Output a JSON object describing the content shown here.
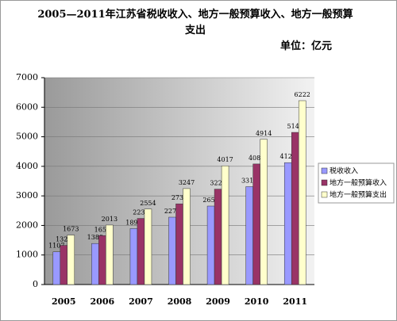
{
  "chart_data": {
    "type": "bar",
    "title": "2005—2011年江苏省税收收入、地方一般预算收入、地方一般预算支出",
    "unit": "单位：亿元",
    "categories": [
      "2005",
      "2006",
      "2007",
      "2008",
      "2009",
      "2010",
      "2011"
    ],
    "series": [
      {
        "name": "税收收入",
        "color": "#9999ff",
        "values": [
          1107,
          1389,
          1894,
          2279,
          2655,
          3313,
          4125
        ]
      },
      {
        "name": "地方一般预算收入",
        "color": "#993366",
        "values": [
          1325,
          1656,
          2237,
          2731,
          3229,
          4080,
          5149
        ]
      },
      {
        "name": "地方一般预算支出",
        "color": "#ffffcc",
        "values": [
          1673,
          2013,
          2554,
          3247,
          4017,
          4914,
          6222
        ]
      }
    ],
    "ylim": [
      0,
      7000
    ],
    "yticks": [
      0,
      1000,
      2000,
      3000,
      4000,
      5000,
      6000,
      7000
    ],
    "grid": true,
    "legend": "right"
  }
}
